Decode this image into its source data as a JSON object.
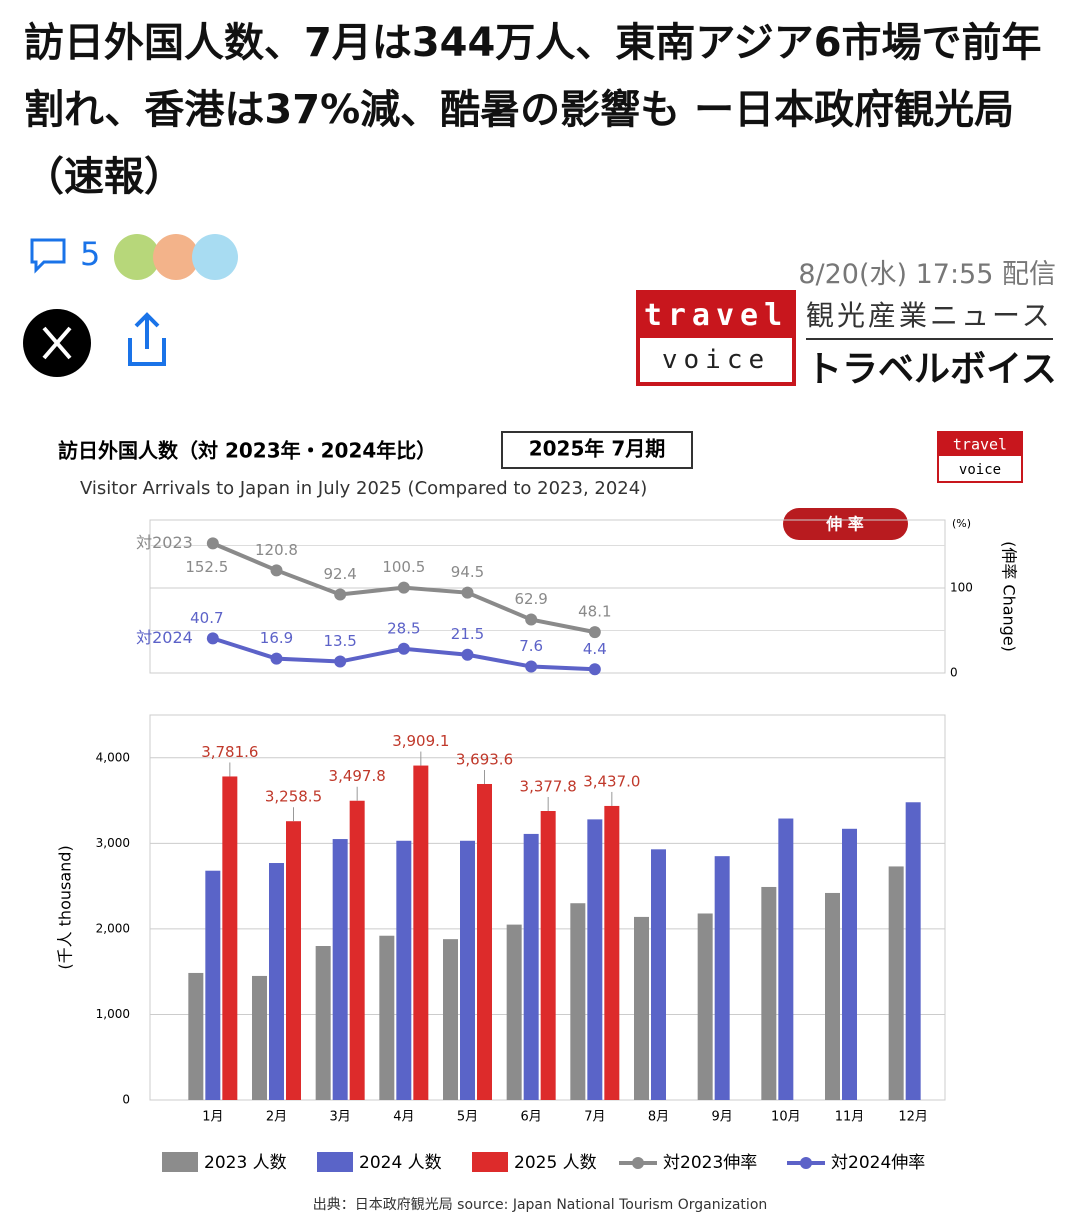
{
  "header": {
    "headline": "訪日外国人数、7月は344万人、東南アジア6市場で前年割れ、香港は37%減、酷暑の影響も ー日本政府観光局（速報）",
    "comments": "5",
    "date": "8/20(水) 17:55 配信",
    "logo_top": "travel",
    "logo_bottom": "voice",
    "site_sub": "観光産業ニュース",
    "site_name": "トラベルボイス"
  },
  "chart_header": {
    "title": "訪日外国人数（対 2023年・2024年比）",
    "period": "2025年 7月期",
    "subtitle": "Visitor Arrivals to Japan in July 2025 (Compared to 2023, 2024)",
    "badge": "伸 率",
    "logo_top": "travel",
    "logo_bottom": "voice",
    "source": "出典：日本政府観光局  source: Japan National Tourism Organization"
  },
  "chart_data": [
    {
      "type": "line",
      "y_label": "(伸率 Change)",
      "y_unit": "(%)",
      "categories": [
        "1月",
        "2月",
        "3月",
        "4月",
        "5月",
        "6月",
        "7月",
        "8月",
        "9月",
        "10月",
        "11月",
        "12月"
      ],
      "ylim": [
        0,
        180
      ],
      "yticks": [
        0,
        100
      ],
      "grid": true,
      "series": [
        {
          "name": "対2023伸率",
          "label": "対2023",
          "color": "#8a8a8a",
          "values": [
            152.5,
            120.8,
            92.4,
            100.5,
            94.5,
            62.9,
            48.1,
            null,
            null,
            null,
            null,
            null
          ]
        },
        {
          "name": "対2024伸率",
          "label": "対2024",
          "color": "#5c62c8",
          "values": [
            40.7,
            16.9,
            13.5,
            28.5,
            21.5,
            7.6,
            4.4,
            null,
            null,
            null,
            null,
            null
          ]
        }
      ]
    },
    {
      "type": "bar",
      "y_label": "(千人 thousand)",
      "categories": [
        "1月",
        "2月",
        "3月",
        "4月",
        "5月",
        "6月",
        "7月",
        "8月",
        "9月",
        "10月",
        "11月",
        "12月"
      ],
      "ylim": [
        0,
        4500
      ],
      "yticks": [
        0,
        {
          "value": 1000,
          "label": "1,000"
        },
        {
          "value": 2000,
          "label": "2,000"
        },
        {
          "value": 3000,
          "label": "3,000"
        },
        {
          "value": 4000,
          "label": "4,000"
        }
      ],
      "grid": true,
      "series": [
        {
          "name": "2023 人数",
          "color": "#8c8c8c",
          "values": [
            1485,
            1450,
            1800,
            1920,
            1880,
            2050,
            2300,
            2140,
            2180,
            2490,
            2420,
            2730
          ]
        },
        {
          "name": "2024 人数",
          "color": "#5a64c8",
          "values": [
            2680,
            2770,
            3050,
            3030,
            3030,
            3110,
            3280,
            2930,
            2850,
            3290,
            3170,
            3480
          ]
        },
        {
          "name": "2025 人数",
          "color": "#dd2b2b",
          "values": [
            3781.6,
            3258.5,
            3497.8,
            3909.1,
            3693.6,
            3377.8,
            3437.0,
            null,
            null,
            null,
            null,
            null
          ],
          "value_labels": [
            "3,781.6",
            "3,258.5",
            "3,497.8",
            "3,909.1",
            "3,693.6",
            "3,377.8",
            "3,437.0",
            null,
            null,
            null,
            null,
            null
          ]
        }
      ]
    }
  ]
}
